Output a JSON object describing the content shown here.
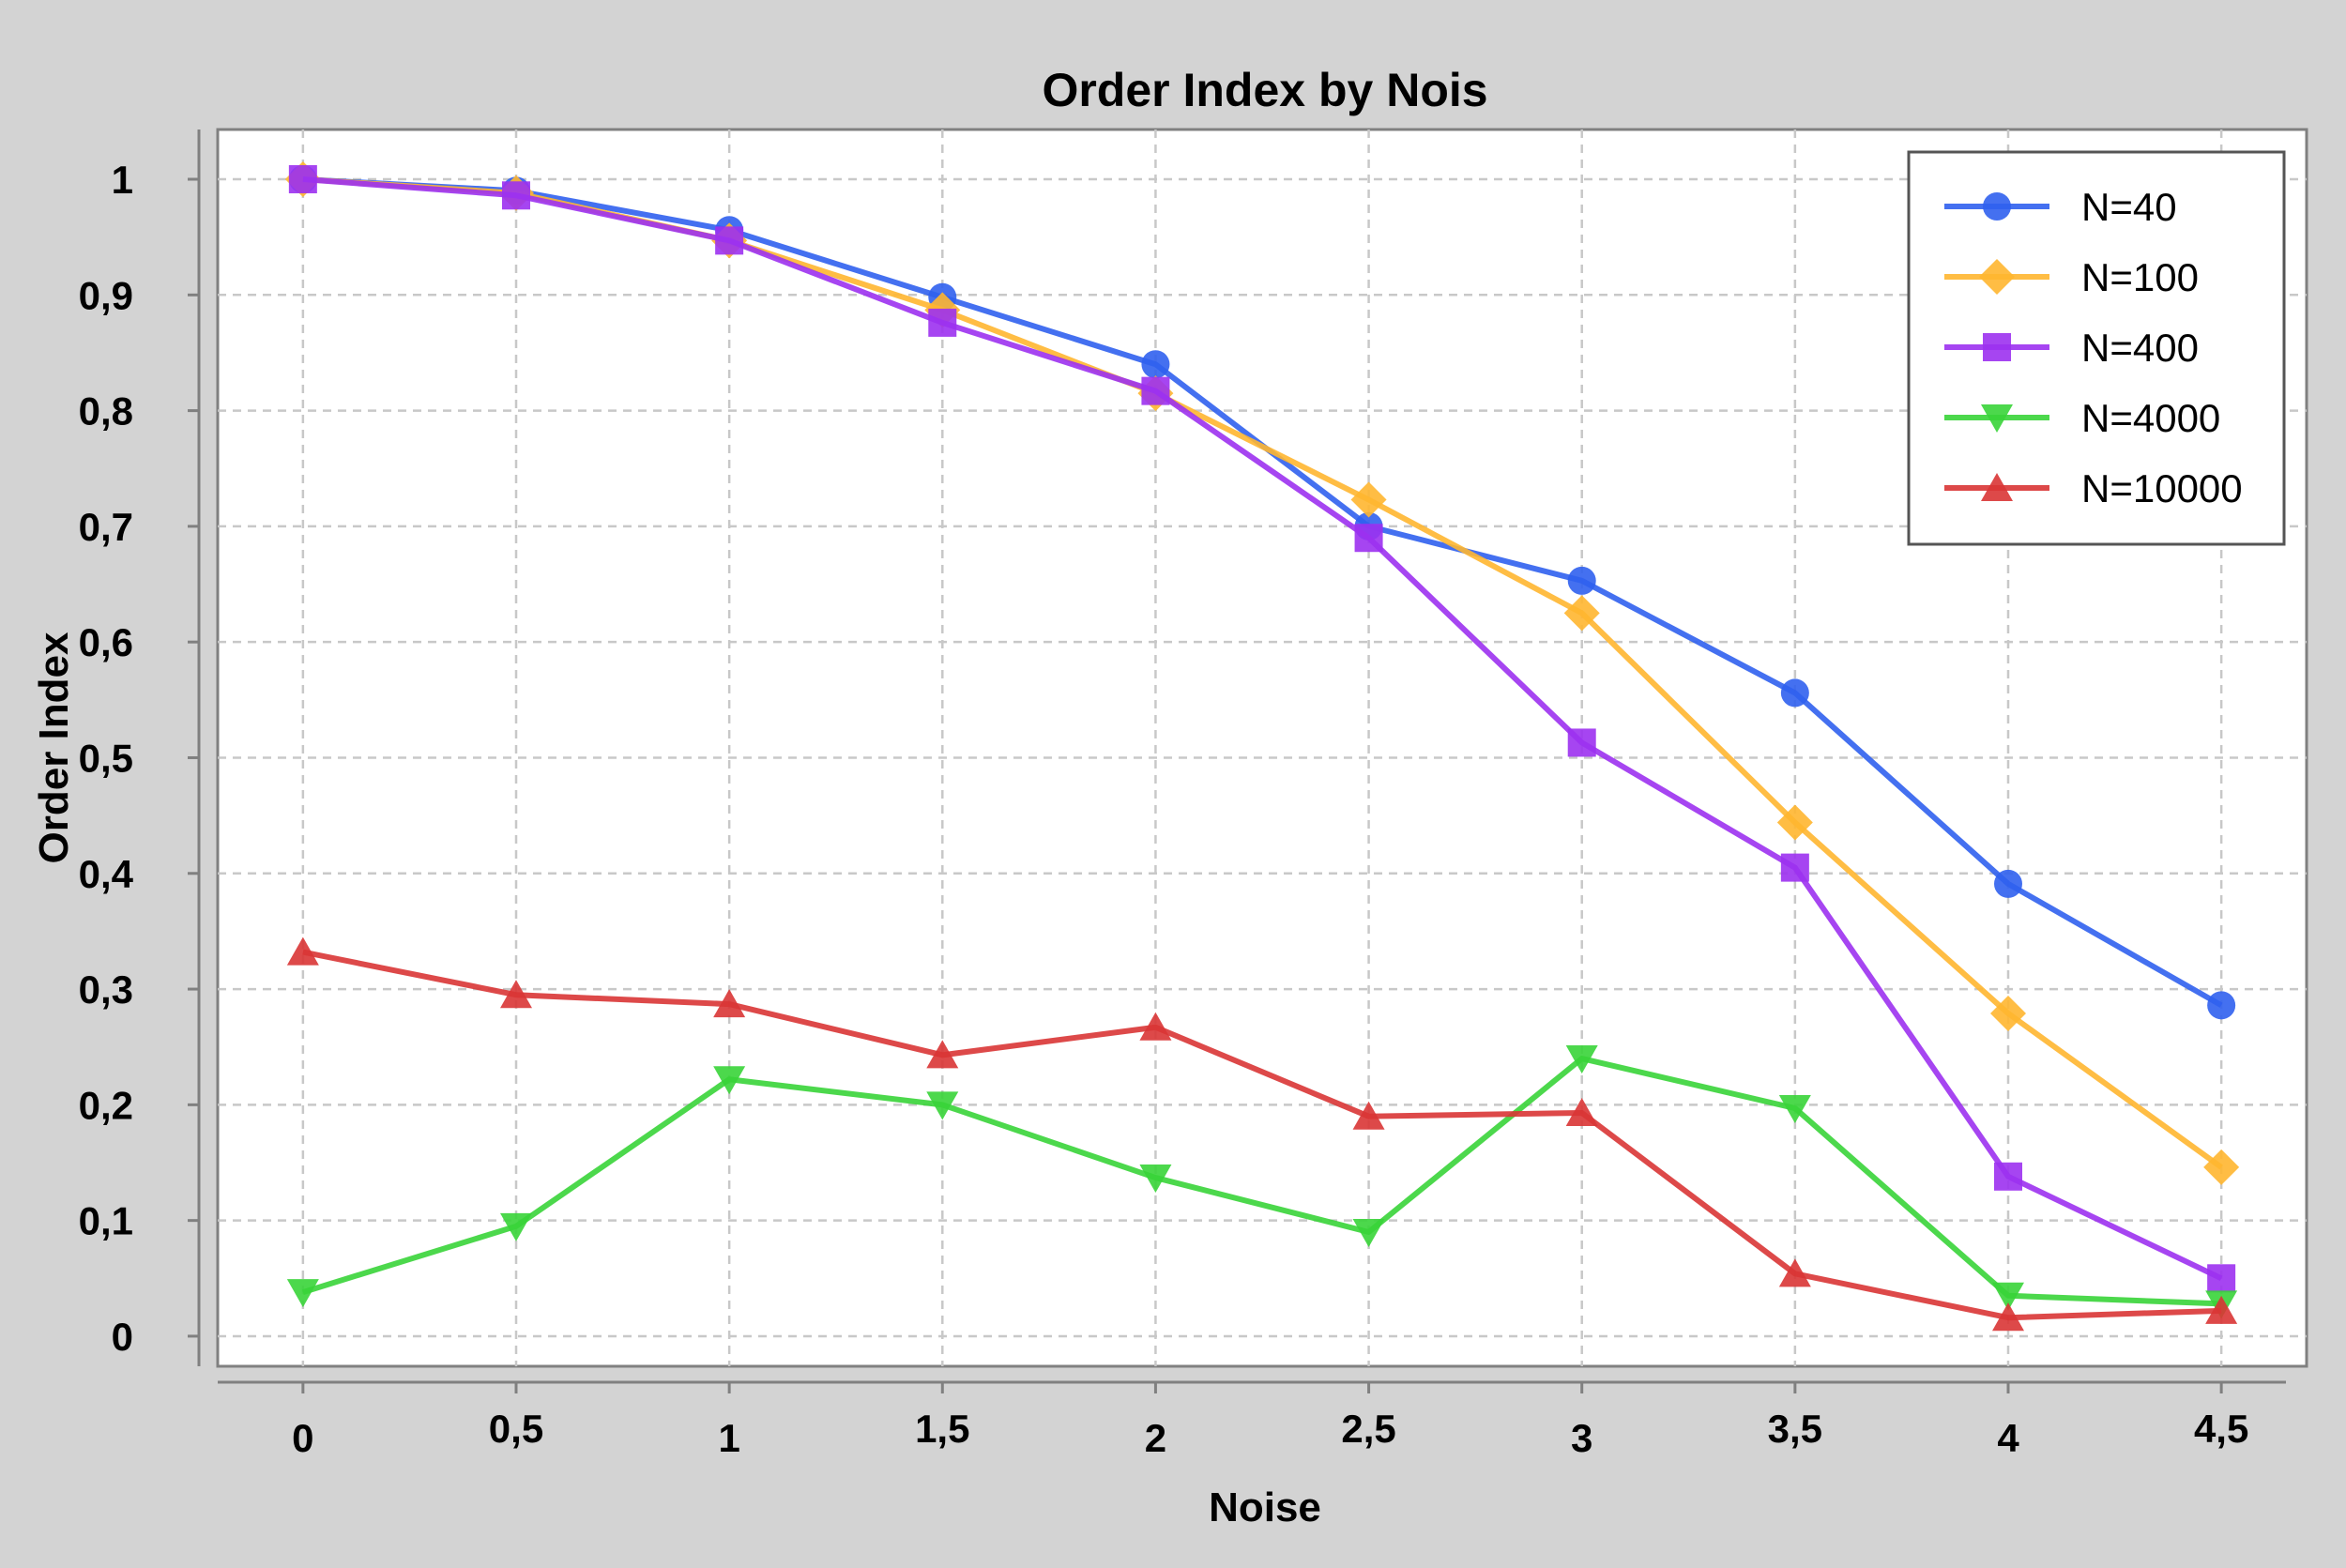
{
  "chart_data": {
    "type": "line",
    "title": "Order Index by Nois",
    "xlabel": "Noise",
    "ylabel": "Order Index",
    "x": [
      0,
      0.5,
      1,
      1.5,
      2,
      2.5,
      3,
      3.5,
      4,
      4.5
    ],
    "xtick_labels": [
      "0",
      "0,5",
      "1",
      "1,5",
      "2",
      "2,5",
      "3",
      "3,5",
      "4",
      "4,5"
    ],
    "ytick_values": [
      0,
      0.1,
      0.2,
      0.3,
      0.4,
      0.5,
      0.6,
      0.7,
      0.8,
      0.9,
      1
    ],
    "ytick_labels": [
      "0",
      "0,1",
      "0,2",
      "0,3",
      "0,4",
      "0,5",
      "0,6",
      "0,7",
      "0,8",
      "0,9",
      "1"
    ],
    "xlim": [
      -0.2,
      4.7
    ],
    "ylim": [
      -0.026,
      1.043
    ],
    "grid": true,
    "legend_position": "top-right",
    "series": [
      {
        "name": "N=40",
        "color": "#3060ee",
        "marker": "circle",
        "values": [
          1.0,
          0.99,
          0.956,
          0.898,
          0.84,
          0.7,
          0.653,
          0.556,
          0.391,
          0.286
        ]
      },
      {
        "name": "N=100",
        "color": "#ffb630",
        "marker": "diamond",
        "values": [
          1.0,
          0.988,
          0.947,
          0.887,
          0.815,
          0.723,
          0.625,
          0.444,
          0.279,
          0.146
        ]
      },
      {
        "name": "N=400",
        "color": "#9c31ef",
        "marker": "square",
        "values": [
          1.0,
          0.986,
          0.947,
          0.876,
          0.817,
          0.69,
          0.513,
          0.405,
          0.138,
          0.05
        ]
      },
      {
        "name": "N=4000",
        "color": "#38d438",
        "marker": "triangle-down",
        "values": [
          0.038,
          0.095,
          0.222,
          0.2,
          0.137,
          0.09,
          0.24,
          0.197,
          0.035,
          0.028
        ]
      },
      {
        "name": "N=10000",
        "color": "#d93535",
        "marker": "triangle-up",
        "values": [
          0.332,
          0.295,
          0.287,
          0.243,
          0.267,
          0.19,
          0.193,
          0.054,
          0.016,
          0.022
        ]
      }
    ]
  }
}
